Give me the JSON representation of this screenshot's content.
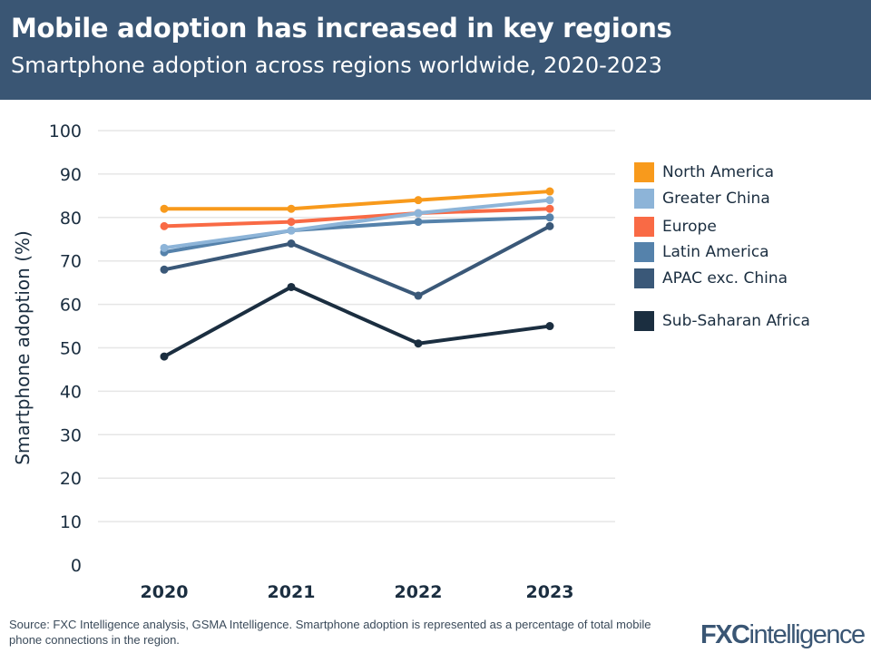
{
  "header": {
    "title": "Mobile adoption has increased in key regions",
    "subtitle": "Smartphone adoption across regions worldwide, 2020-2023"
  },
  "chart_data": {
    "type": "line",
    "title": "Mobile adoption has increased in key regions",
    "subtitle": "Smartphone adoption across regions worldwide, 2020-2023",
    "xlabel": "",
    "ylabel": "Smartphone adoption (%)",
    "x": [
      "2020",
      "2021",
      "2022",
      "2023"
    ],
    "ylim": [
      0,
      100
    ],
    "yticks": [
      0,
      10,
      20,
      30,
      40,
      50,
      60,
      70,
      80,
      90,
      100
    ],
    "grid": true,
    "legend_placement": "right",
    "series": [
      {
        "name": "North America",
        "color": "#f89a1c",
        "values": [
          82,
          82,
          84,
          86
        ]
      },
      {
        "name": "Greater China",
        "color": "#8db4d8",
        "values": [
          73,
          77,
          81,
          84
        ]
      },
      {
        "name": "Europe",
        "color": "#f96a45",
        "values": [
          78,
          79,
          81,
          82
        ]
      },
      {
        "name": "Latin America",
        "color": "#5582ab",
        "values": [
          72,
          77,
          79,
          80
        ]
      },
      {
        "name": "APAC exc. China",
        "color": "#3a5878",
        "values": [
          68,
          74,
          62,
          78
        ]
      },
      {
        "name": "Sub-Saharan Africa",
        "color": "#1b2e40",
        "values": [
          48,
          64,
          51,
          55
        ]
      }
    ]
  },
  "footer": {
    "source": "Source: FXC Intelligence analysis, GSMA Intelligence. Smartphone adoption is represented as a percentage of total mobile phone connections in the region.",
    "logo_text": "FXCintelligence"
  }
}
